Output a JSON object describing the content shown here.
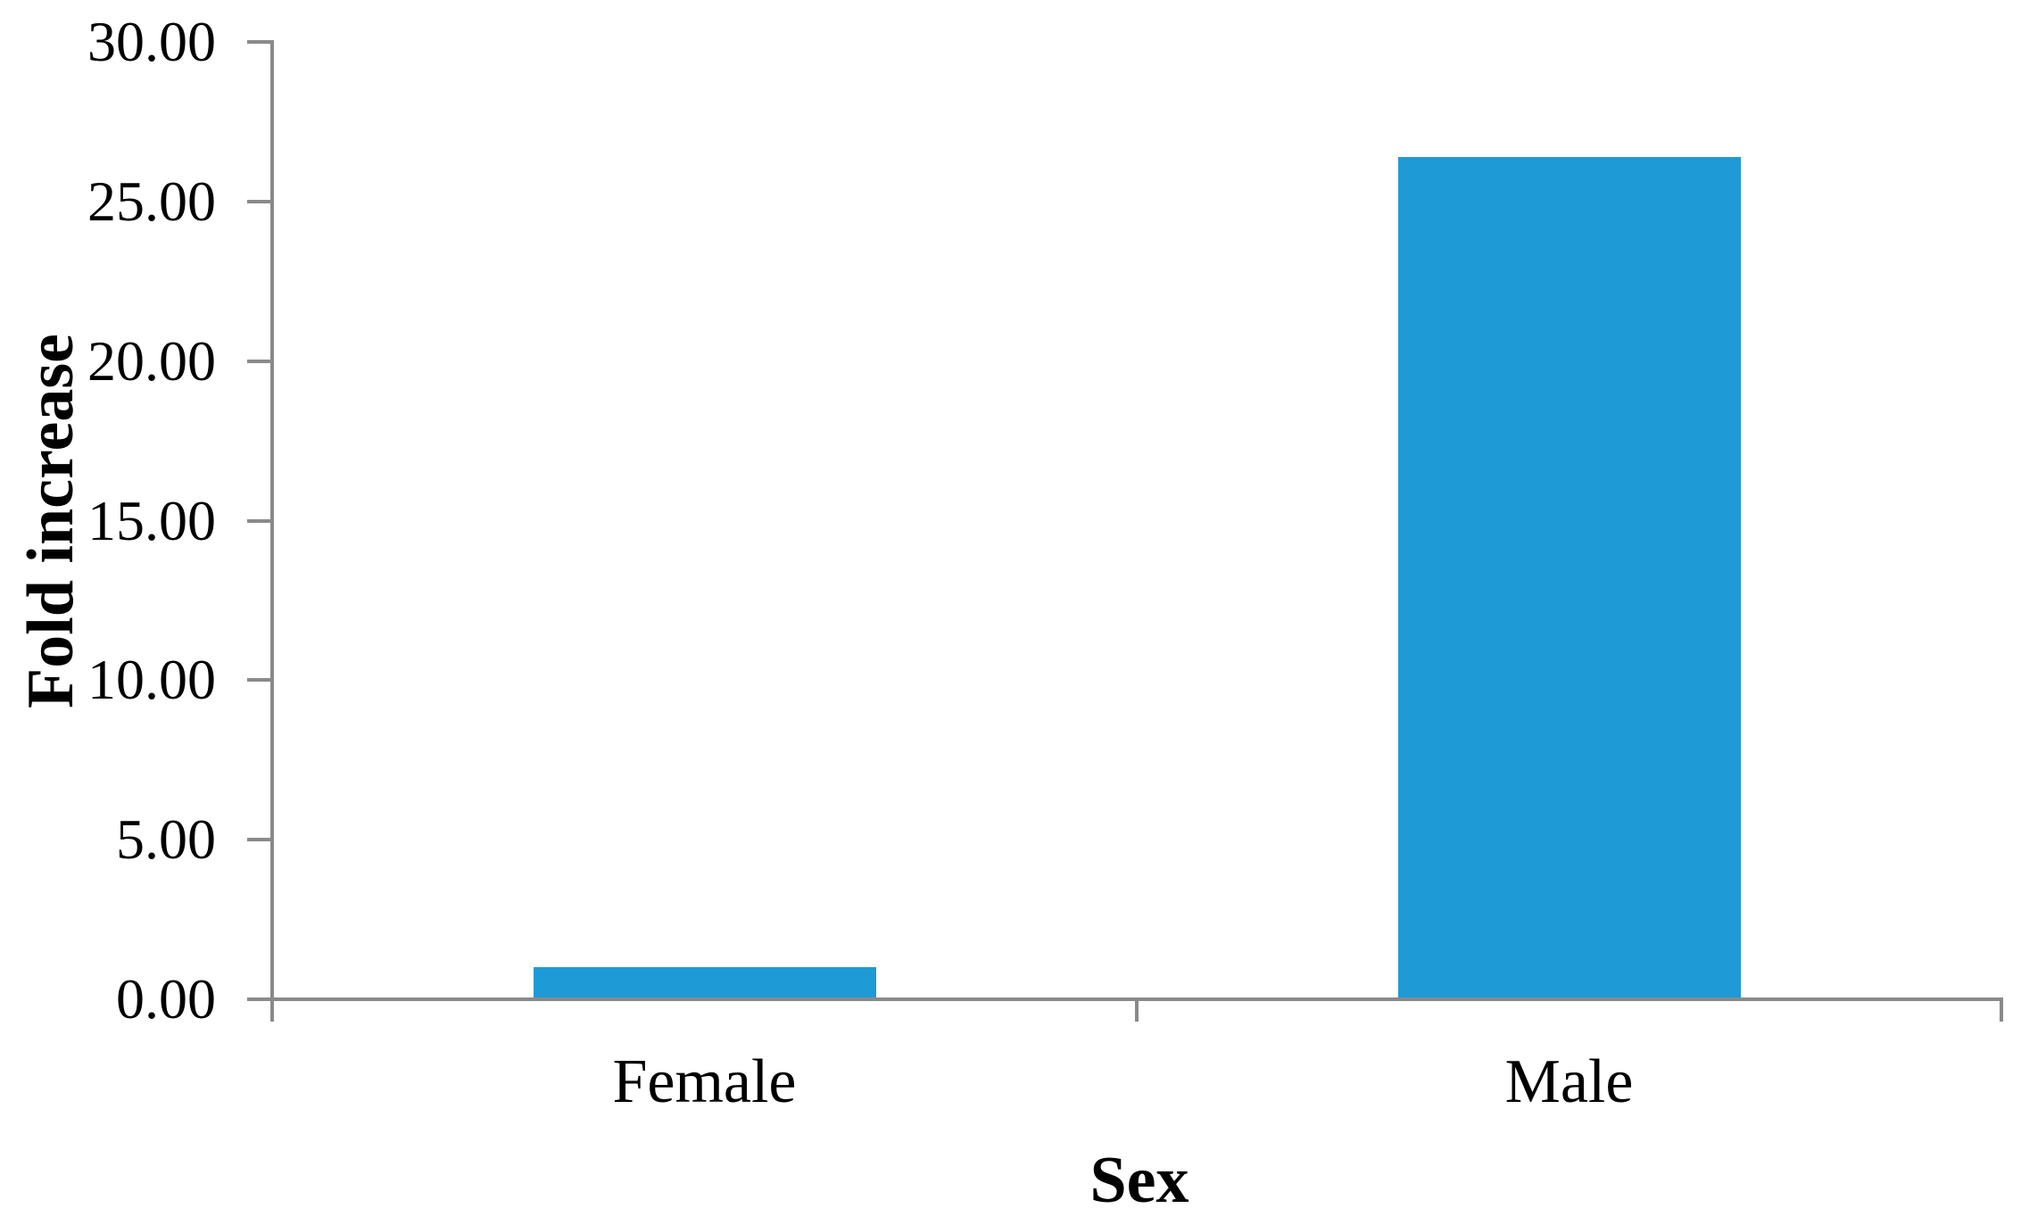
{
  "chart_data": {
    "type": "bar",
    "categories": [
      "Female",
      "Male"
    ],
    "values": [
      1.0,
      26.4
    ],
    "title": "",
    "xlabel": "Sex",
    "ylabel": "Fold increase",
    "ylim": [
      0,
      30
    ],
    "ytick_step": 5,
    "ytick_labels": [
      "0.00",
      "5.00",
      "10.00",
      "15.00",
      "20.00",
      "25.00",
      "30.00"
    ],
    "grid": false,
    "legend": "none",
    "bar_color": "#1E9AD6",
    "axis_color": "#8A8A8A",
    "text_color": "#000000"
  }
}
